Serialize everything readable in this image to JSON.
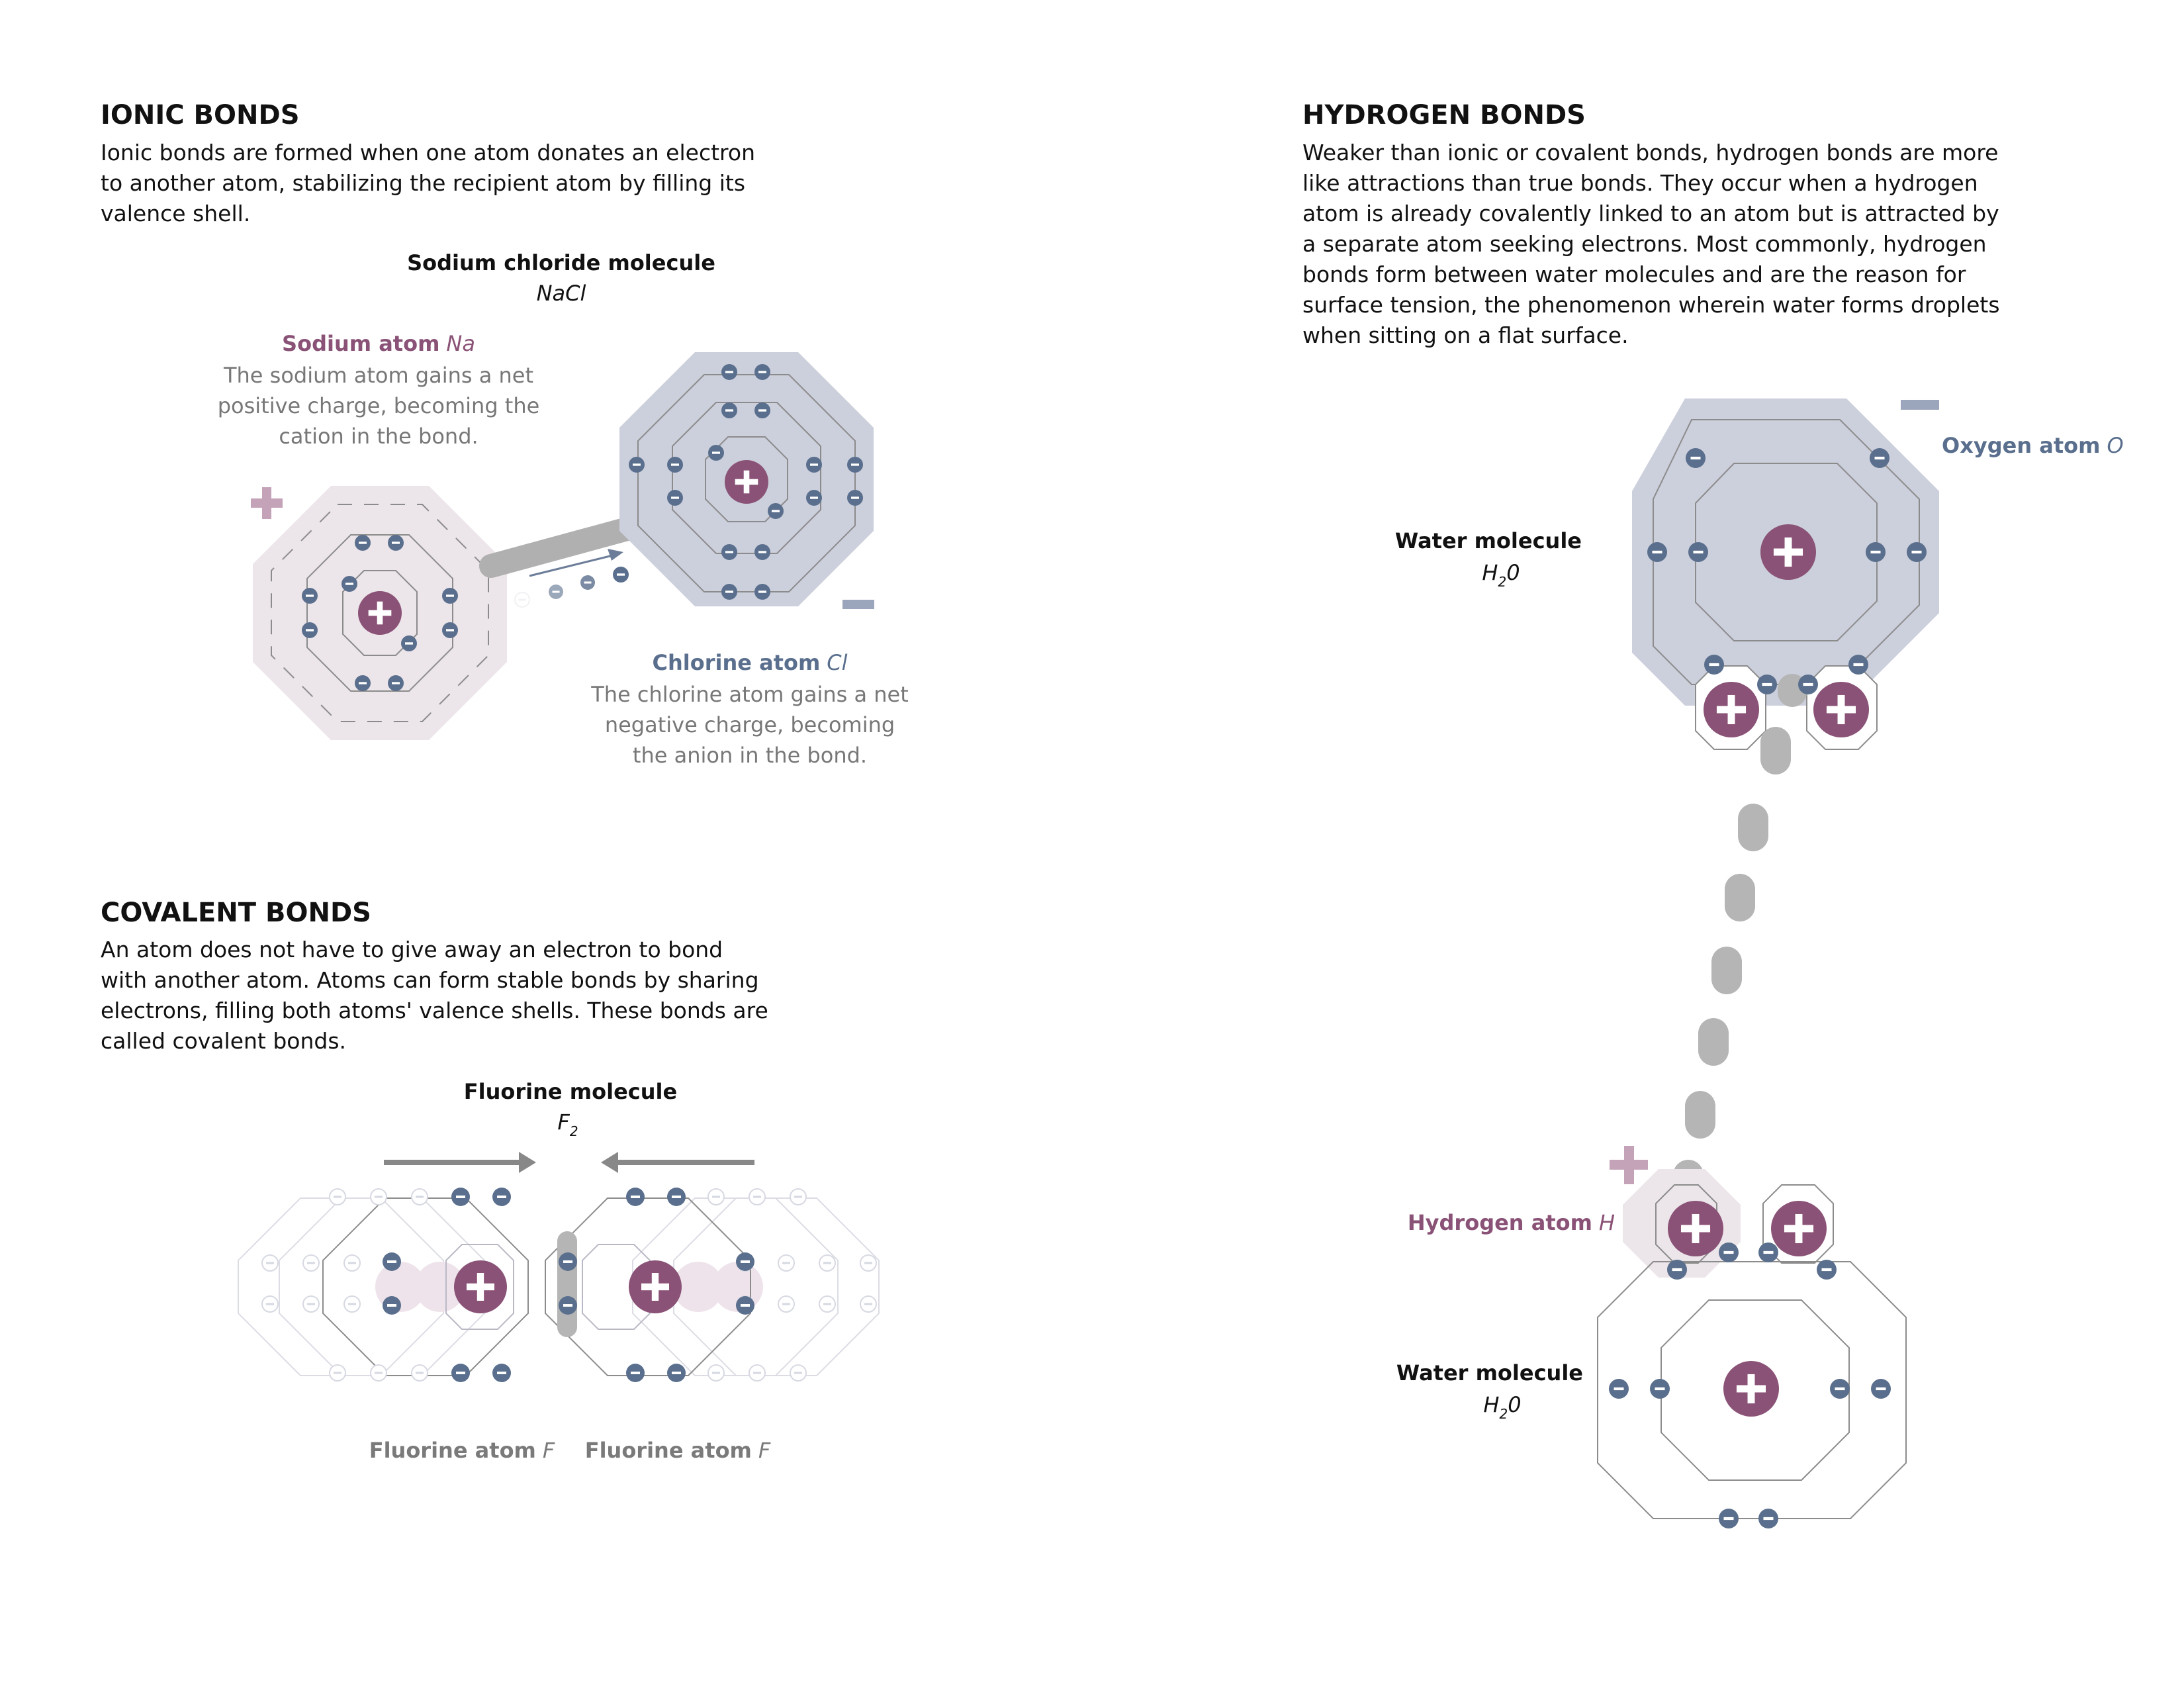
{
  "ionic": {
    "heading": "IONIC BONDS",
    "paragraph": [
      "Ionic bonds are formed when one atom donates an electron",
      "to another atom, stabilizing the recipient atom by filling its",
      "valence shell."
    ],
    "molecule_title": "Sodium chloride molecule",
    "molecule_formula": "NaCl",
    "sodium_label": "Sodium atom",
    "sodium_symbol": "Na",
    "sodium_note": [
      "The sodium atom gains a net",
      "positive charge, becoming the",
      "cation in the bond."
    ],
    "chlorine_label": "Chlorine atom",
    "chlorine_symbol": "Cl",
    "chlorine_note": [
      "The chlorine atom gains a net",
      "negative charge, becoming",
      "the anion in the bond."
    ]
  },
  "covalent": {
    "heading": "COVALENT BONDS",
    "paragraph": [
      "An atom does not have to give away an electron to bond",
      "with another atom. Atoms can form stable bonds by sharing",
      "electrons, filling both atoms' valence shells. These bonds are",
      "called covalent bonds."
    ],
    "molecule_title": "Fluorine molecule",
    "molecule_formula": "F",
    "molecule_formula_sub": "2",
    "atom_left_label": "Fluorine atom",
    "atom_left_symbol": "F",
    "atom_right_label": "Fluorine atom",
    "atom_right_symbol": "F"
  },
  "hydrogen": {
    "heading": "HYDROGEN BONDS",
    "paragraph": [
      "Weaker than ionic or covalent bonds, hydrogen bonds are more",
      "like attractions than true bonds. They occur when a hydrogen",
      "atom is already covalently linked to an atom but is attracted by",
      "a separate atom seeking electrons. Most commonly, hydrogen",
      "bonds form between water molecules and are the reason for",
      "surface tension, the phenomenon wherein water forms droplets",
      "when sitting on a flat surface."
    ],
    "oxygen_label": "Oxygen atom",
    "oxygen_symbol": "O",
    "water_top_title": "Water molecule",
    "water_top_formula": "H",
    "water_top_sub": "2",
    "water_top_tail": "0",
    "hydrogen_label": "Hydrogen atom",
    "hydrogen_symbol": "H",
    "water_bottom_title": "Water molecule",
    "water_bottom_formula": "H",
    "water_bottom_sub": "2",
    "water_bottom_tail": "0"
  },
  "colors": {
    "nucleus": "#8a5276",
    "electron": "#5a6f8d",
    "shell_line": "#8c8c8c",
    "sodium_fill": "#ece5ea",
    "chlorine_fill": "#cccfdc",
    "bond_grey": "#b5b5b5",
    "plus_sign": "#c4a3b8",
    "minus_sign": "#9ba6bd"
  }
}
